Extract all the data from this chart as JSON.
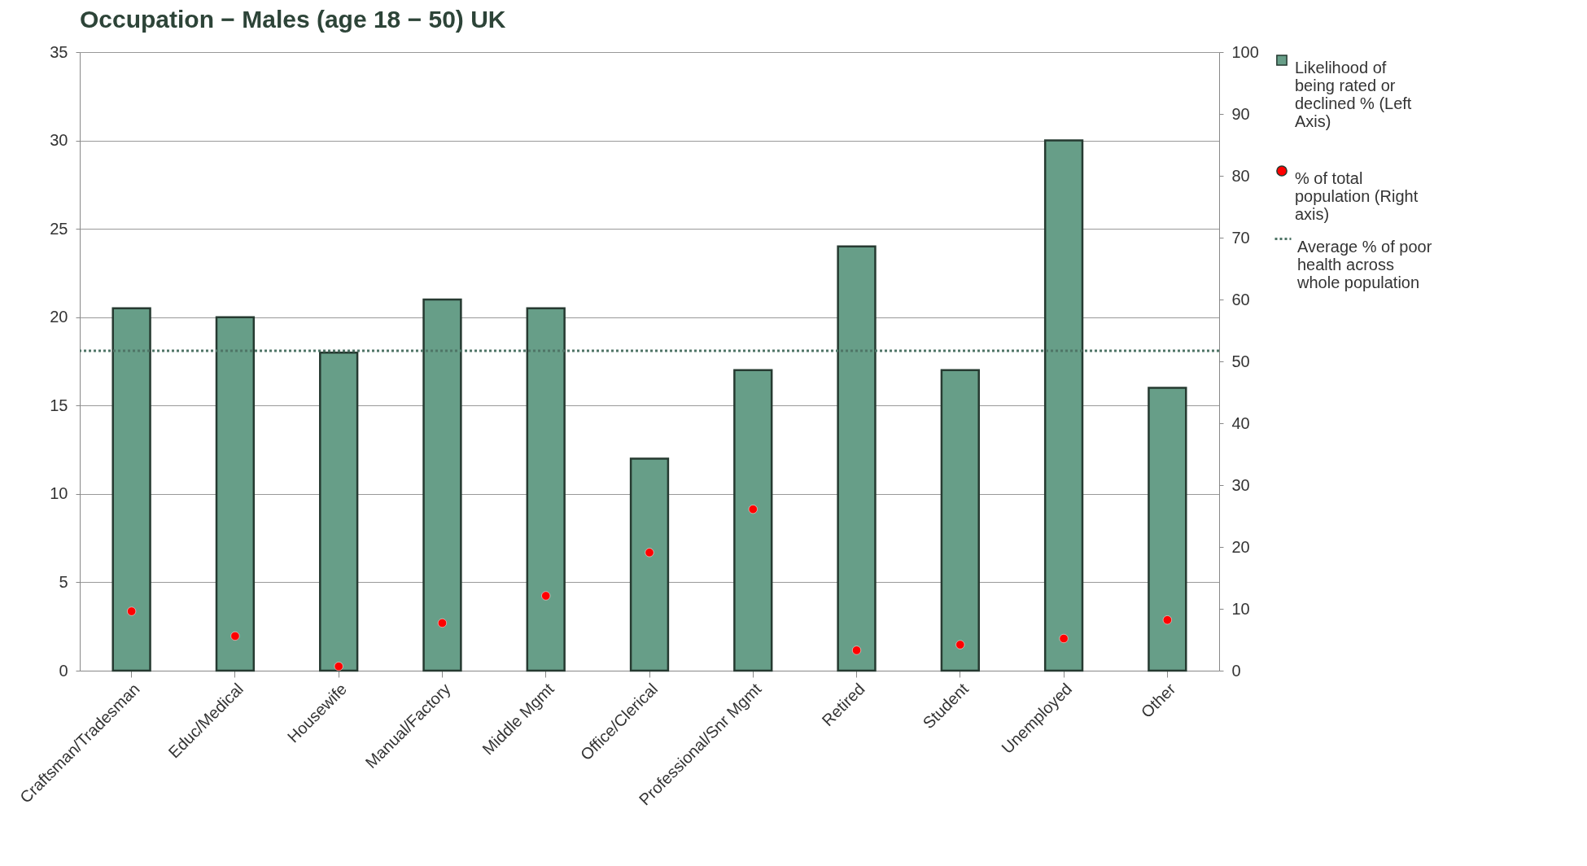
{
  "chart_data": {
    "type": "bar",
    "title": "Occupation − Males (age 18 − 50) UK",
    "categories": [
      "Craftsman/Tradesman",
      "Educ/Medical",
      "Housewife",
      "Manual/Factory",
      "Middle Mgmt",
      "Office/Clerical",
      "Professional/Snr Mgmt",
      "Retired",
      "Student",
      "Unemployed",
      "Other"
    ],
    "series": [
      {
        "name": "Likelihood of being rated or declined % (Left Axis)",
        "color": "#679e88",
        "values": [
          20.5,
          20,
          18,
          21,
          20.5,
          12,
          17,
          24,
          17,
          30,
          16
        ]
      },
      {
        "name": "% of total population (Right axis)",
        "type": "scatter",
        "axis": "y2",
        "color": "#ff0000",
        "values": [
          9.6,
          5.6,
          0.7,
          7.7,
          12.1,
          19.1,
          26.1,
          3.3,
          4.2,
          5.2,
          8.2
        ]
      }
    ],
    "ylim": [
      0,
      35
    ],
    "yticks": [
      0,
      5,
      10,
      15,
      20,
      25,
      30,
      35
    ],
    "y2lim": [
      0,
      100
    ],
    "y2ticks": [
      0,
      10,
      20,
      30,
      40,
      50,
      60,
      70,
      80,
      90,
      100
    ],
    "ref_lines": [
      {
        "axis": "y",
        "value": 18.1,
        "label": "Average % of poor health across whole population",
        "color": "#4f7466",
        "line_style": "dotted"
      }
    ],
    "grid": "y",
    "legend": "right"
  }
}
